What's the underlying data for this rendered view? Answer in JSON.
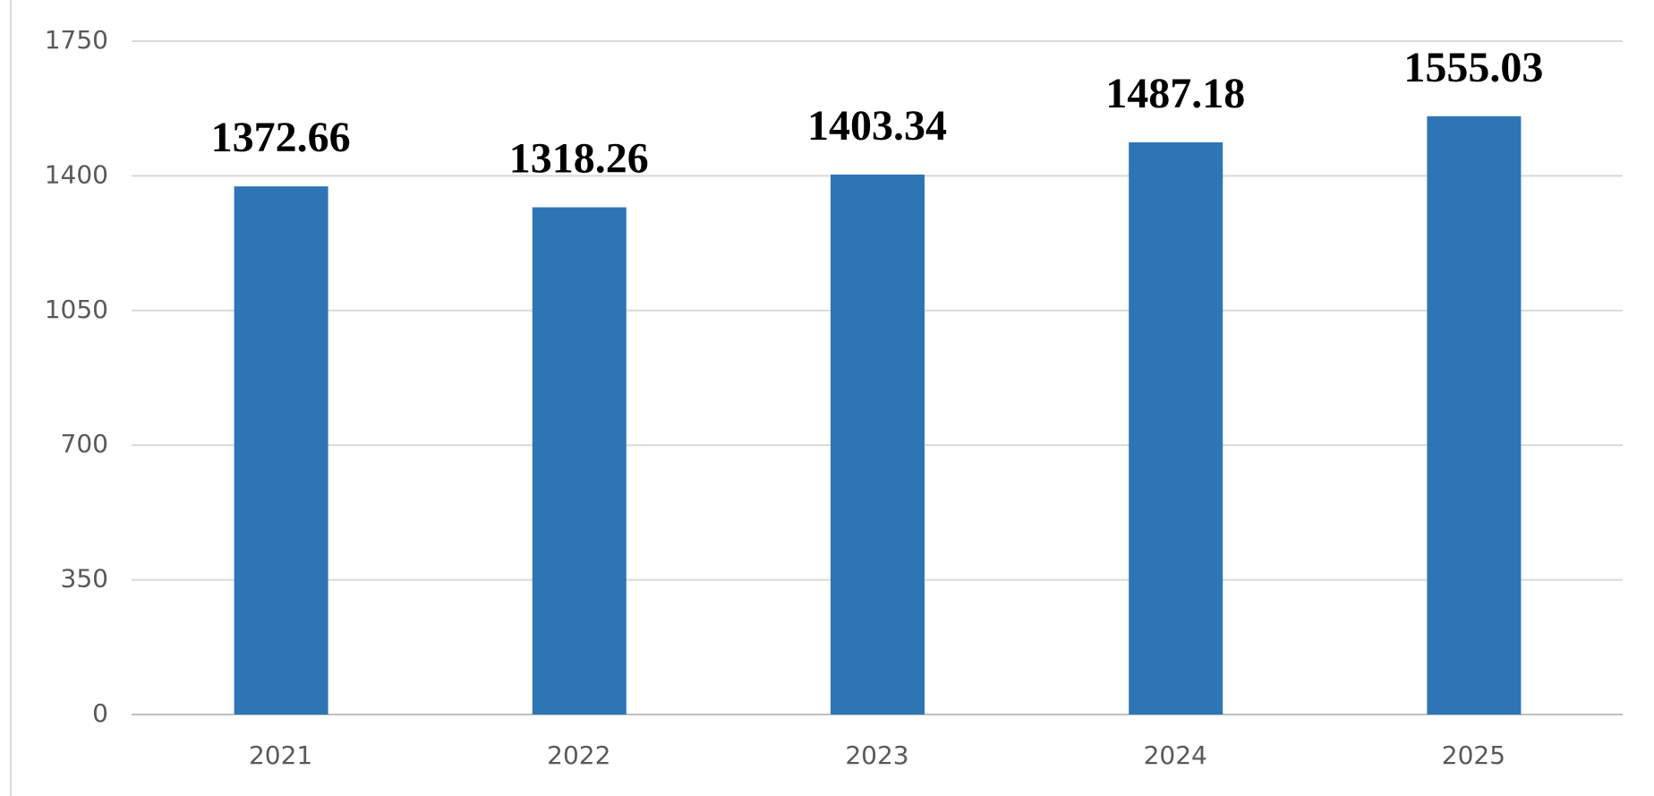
{
  "chart_data": {
    "type": "bar",
    "categories": [
      "2021",
      "2022",
      "2023",
      "2024",
      "2025"
    ],
    "values": [
      1372.66,
      1318.26,
      1403.34,
      1487.18,
      1555.03
    ],
    "color": "#2e75b6",
    "ylim": [
      0,
      1750
    ],
    "yticks": [
      0,
      350,
      700,
      1050,
      1400,
      1750
    ],
    "grid": true
  }
}
